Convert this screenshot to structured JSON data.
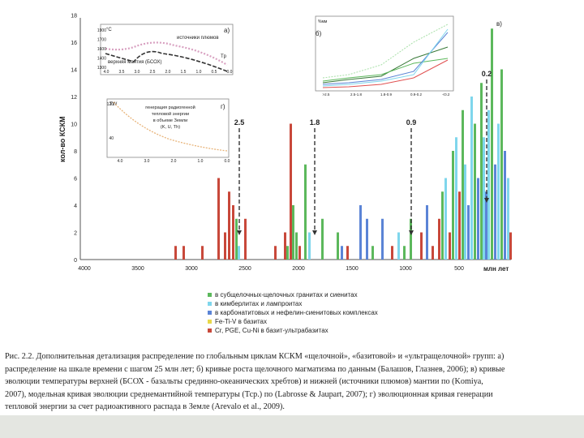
{
  "figure": {
    "y_axis_label": "кол-во КСКМ",
    "x_unit_label": "млн лет",
    "y_ticks": [
      "0",
      "2",
      "4",
      "6",
      "8",
      "10",
      "12",
      "14",
      "16",
      "18"
    ],
    "x_ticks": [
      "4000",
      "3500",
      "3000",
      "2500",
      "2000",
      "1500",
      "1000",
      "500"
    ],
    "peaks": [
      "2.5",
      "1.8",
      "0.9",
      "0.2"
    ],
    "colors": {
      "green": "#5cb85c",
      "cyan": "#7fd6ec",
      "blue": "#5b84d6",
      "yellow": "#e8d84a",
      "red": "#c8483a"
    }
  },
  "inset_a": {
    "tag": "а)",
    "unit": "°C",
    "y_ticks": [
      "1900",
      "1700",
      "1600",
      "1400",
      "1300"
    ],
    "x_ticks": [
      "4.0",
      "3.5",
      "3.0",
      "2.5",
      "2.0",
      "1.5",
      "1.0",
      "0.5",
      "0.0"
    ],
    "label_upper": "источники плюмов",
    "label_lower": "верхняя мантия (БСОХ)",
    "tp": "Tp"
  },
  "inset_b": {
    "tag": "б)",
    "y_label": "%мм",
    "x_ticks": [
      ">2.5",
      "2.5-1.8",
      "1.8-0.9",
      "0.9-0.2",
      "<0.2"
    ]
  },
  "inset_c": {
    "tag": "в)"
  },
  "inset_d": {
    "tag": "г)",
    "unit": "TW",
    "y_ticks": [
      "120",
      "40"
    ],
    "x_ticks": [
      "4.0",
      "3.0",
      "2.0",
      "1.0",
      "0.0"
    ],
    "label": [
      "генерация радиогенной",
      "тепловой энергии",
      "в объеме Земли",
      "(K, U, Th)"
    ]
  },
  "legend": [
    {
      "label": "в субщелочных-щелочных гранитах и сиенитах",
      "color": "#5cb85c"
    },
    {
      "label": "в кимберлитах и лампроитах",
      "color": "#7fd6ec"
    },
    {
      "label": "в карбонатитовых и нефелин-сиенитовых комплексах",
      "color": "#5b84d6"
    },
    {
      "label": "Fe-Ti-V в базитах",
      "color": "#e8d84a"
    },
    {
      "label": "Cr, PGE, Cu-Ni в базит-ультрабазитах",
      "color": "#c8483a"
    }
  ],
  "caption": [
    "Рис. 2.2. Дополнительная детализация распределение по глобальным циклам КСКМ «щелочной», «базитовой» и «ультращелочной» групп: а)",
    "распределение на шкале времени с шагом 25 млн лет; б) кривые роста щелочного магматизма по данным (Балашов, Глазнев, 2006); в) кривые",
    "эволюции температуры верхней (БСОХ - базальты срединно-океанических хребтов) и нижней (источники плюмов) мантии по (Komiya,",
    "2007), модельная кривая эволюции среднемантийной температуры (Тср.) по (Labrosse & Jaupart, 2007); г) эволюционная кривая генерации",
    "тепловой энергии за счет радиоактивного распада в Земле (Arevalo et al., 2009)."
  ]
}
